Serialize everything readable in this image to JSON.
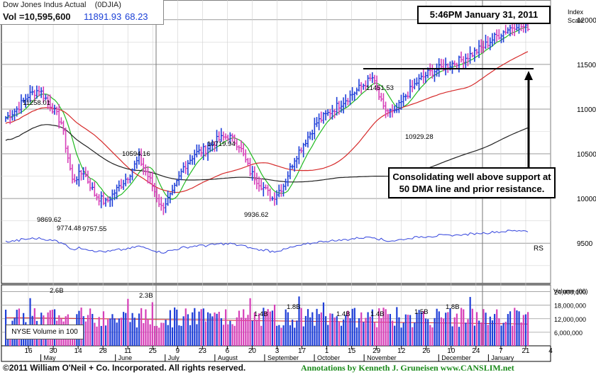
{
  "header": {
    "index_name": "Dow Jones Indus Actual",
    "symbol": "(0DJIA)",
    "volume_label": "Vol =10,595,600",
    "close": "11891.93",
    "change": "68.23"
  },
  "timestamp": "5:46PM January 31, 2011",
  "callout": {
    "line1": "Consolidating well above support at",
    "line2": "50 DMA line and prior resistance."
  },
  "volume_legend": "NYSE Volume in 100",
  "footer": {
    "left": "©2011 William O'Neil + Co. Incorporated. All rights reserved.",
    "right": "Annotations by Kenneth J. Gruneisen  www.CANSLIM.net"
  },
  "colors": {
    "up_bar": "#1f3fd8",
    "down_bar": "#d63fb8",
    "ma50": "#22bb22",
    "ma200": "#d62a2a",
    "ma_long": "#222222",
    "rs_line": "#3344dd",
    "grid": "#9a9a9a"
  },
  "chart_data": {
    "type": "ohlc",
    "price_axis": {
      "title": "Index Scale",
      "ticks": [
        9500,
        10000,
        10500,
        11000,
        11500,
        12000
      ],
      "ylim": [
        9050,
        12220
      ]
    },
    "volume_axis": {
      "title": "Volume (00)",
      "ticks": [
        "24,000,000",
        "18,000,000",
        "12,000,000",
        "6,000,000"
      ],
      "tick_values": [
        24000000,
        18000000,
        12000000,
        6000000
      ]
    },
    "x_tick_labels": [
      "16",
      "30",
      "14",
      "28",
      "11",
      "25",
      "9",
      "23",
      "6",
      "20",
      "3",
      "17",
      "1",
      "15",
      "29",
      "12",
      "26",
      "10",
      "24",
      "7",
      "21",
      "4"
    ],
    "month_labels": [
      "May",
      "June",
      "July",
      "August",
      "September",
      "October",
      "November",
      "December",
      "January"
    ],
    "price_annotations": [
      {
        "label": "11258.01",
        "value": 11258.01
      },
      {
        "label": "9869.62",
        "value": 9869.62
      },
      {
        "label": "9774.48",
        "value": 9774.48
      },
      {
        "label": "9757.55",
        "value": 9757.55
      },
      {
        "label": "10594.16",
        "value": 10594.16
      },
      {
        "label": "10719.94",
        "value": 10719.94
      },
      {
        "label": "9936.62",
        "value": 9936.62
      },
      {
        "label": "11451.53",
        "value": 11451.53
      },
      {
        "label": "10929.28",
        "value": 10929.28
      }
    ],
    "volume_annotations": [
      "2.6B",
      "2.3B",
      "1.4B",
      "1.8B",
      "1.4B",
      "1.4B",
      "1.5B",
      "1.8B"
    ],
    "rs_label": "RS",
    "resistance_level": 11451.53,
    "weekly_closes": [
      10900,
      11000,
      11150,
      11220,
      11050,
      10850,
      10200,
      10300,
      10050,
      9950,
      10100,
      10250,
      10450,
      10200,
      9900,
      10050,
      10350,
      10500,
      10550,
      10650,
      10700,
      10600,
      10300,
      10150,
      10000,
      10150,
      10450,
      10650,
      10850,
      10950,
      11050,
      11150,
      11250,
      11350,
      11000,
      10950,
      11150,
      11300,
      11400,
      11450,
      11500,
      11550,
      11620,
      11700,
      11800,
      11880,
      11950,
      11892
    ]
  }
}
